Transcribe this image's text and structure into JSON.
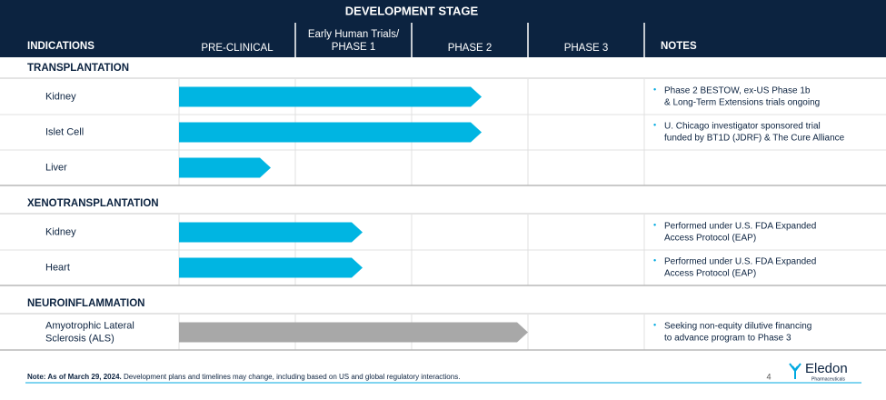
{
  "header": {
    "title": "DEVELOPMENT STAGE",
    "columns": [
      "INDICATIONS",
      "PRE-CLINICAL",
      [
        "Early Human Trials/",
        "PHASE 1"
      ],
      "PHASE 2",
      "PHASE 3",
      "NOTES"
    ]
  },
  "sections": [
    {
      "title": "TRANSPLANTATION",
      "rows": [
        {
          "indication": [
            "Kidney"
          ],
          "notes": [
            "Phase 2 BESTOW, ex-US Phase 1b",
            "& Long-Term Extensions trials ongoing"
          ]
        },
        {
          "indication": [
            "Islet Cell"
          ],
          "notes": [
            "U. Chicago investigator sponsored trial",
            "funded by BT1D (JDRF) & The Cure Alliance"
          ]
        },
        {
          "indication": [
            "Liver"
          ],
          "notes": []
        }
      ]
    },
    {
      "title": "XENOTRANSPLANTATION",
      "rows": [
        {
          "indication": [
            "Kidney"
          ],
          "notes": [
            "Performed under U.S. FDA Expanded",
            "Access Protocol (EAP)"
          ]
        },
        {
          "indication": [
            "Heart"
          ],
          "notes": [
            "Performed under U.S. FDA Expanded",
            "Access Protocol (EAP)"
          ]
        }
      ]
    },
    {
      "title": "NEUROINFLAMMATION",
      "rows": [
        {
          "indication": [
            "Amyotrophic Lateral",
            "Sclerosis (ALS)"
          ],
          "notes": [
            "Seeking non-equity dilutive financing",
            "to advance program to Phase 3"
          ]
        }
      ]
    }
  ],
  "footer": {
    "note_label": "Note: As of March 29, 2024.",
    "note": "Development plans and timelines may change, including based on US and global regulatory interactions.",
    "page": "4",
    "logo": "Eledon",
    "logo_sub": "Pharmaceuticals"
  }
}
